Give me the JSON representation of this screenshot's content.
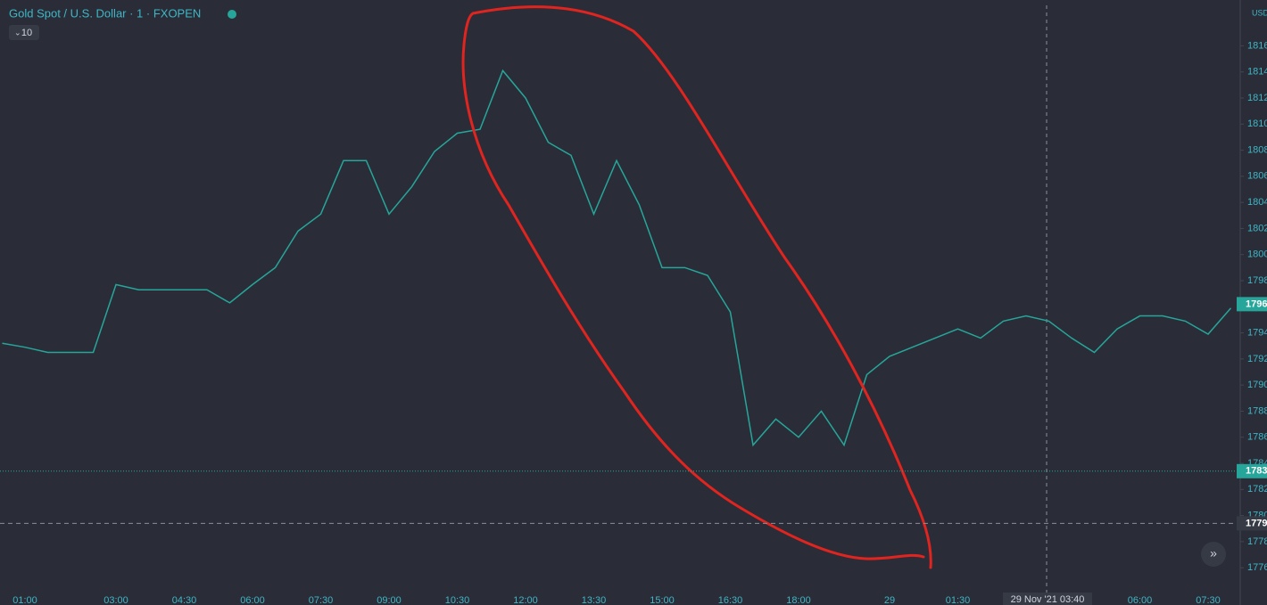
{
  "chart_data": {
    "type": "line",
    "title": "Gold Spot / U.S. Dollar · 1 · FXOPEN",
    "indicator_count": "10",
    "currency": "USD",
    "categories": [
      null,
      "01:00",
      null,
      null,
      null,
      "03:00",
      null,
      null,
      "04:30",
      null,
      null,
      "06:00",
      null,
      null,
      "07:30",
      null,
      null,
      "09:00",
      null,
      null,
      "10:30",
      null,
      null,
      "12:00",
      null,
      null,
      "13:30",
      null,
      null,
      "15:00",
      null,
      null,
      "16:30",
      null,
      null,
      "18:00",
      null,
      null,
      null,
      "29",
      null,
      null,
      "01:30",
      null,
      null,
      null,
      null,
      null,
      null,
      null,
      "06:00",
      null,
      null,
      "07:30",
      null
    ],
    "series": [
      {
        "name": "XAUUSD",
        "color": "#26a69a",
        "values": [
          1793.2,
          1792.9,
          1792.5,
          1792.5,
          1792.5,
          1797.7,
          1797.3,
          1797.3,
          1797.3,
          1797.3,
          1796.3,
          1797.7,
          1799,
          1801.8,
          1803.1,
          1807.2,
          1807.2,
          1803.1,
          1805.2,
          1807.9,
          1809.3,
          1809.6,
          1814.1,
          1812,
          1808.6,
          1807.6,
          1803.1,
          1807.2,
          1803.8,
          1799,
          1799,
          1798.4,
          1795.6,
          1785.4,
          1787.4,
          1786,
          1788,
          1785.4,
          1790.8,
          1792.2,
          1792.9,
          1793.6,
          1794.3,
          1793.6,
          1794.9,
          1795.3,
          1794.9,
          1793.6,
          1792.5,
          1794.3,
          1795.3,
          1795.3,
          1794.9,
          1793.9,
          1795.9
        ]
      }
    ],
    "ylim": [
      1774.1,
      1819.1
    ],
    "yticks": [
      1776,
      1778,
      1780,
      1782,
      1784,
      1786,
      1788,
      1790,
      1792,
      1794,
      1796,
      1798,
      1800,
      1802,
      1804,
      1806,
      1808,
      1810,
      1812,
      1814,
      1816
    ],
    "price_lines": [
      {
        "value": 1796.2,
        "label": "1796",
        "color": "#26a69a",
        "style": "none"
      },
      {
        "value": 1783.4,
        "label": "1783",
        "color": "#26a69a",
        "style": "dotted"
      },
      {
        "value": 1779.4,
        "label": "1779",
        "color": "#363a45",
        "style": "dashed"
      }
    ],
    "crosshair_time": "29 Nov '21  03:40"
  }
}
